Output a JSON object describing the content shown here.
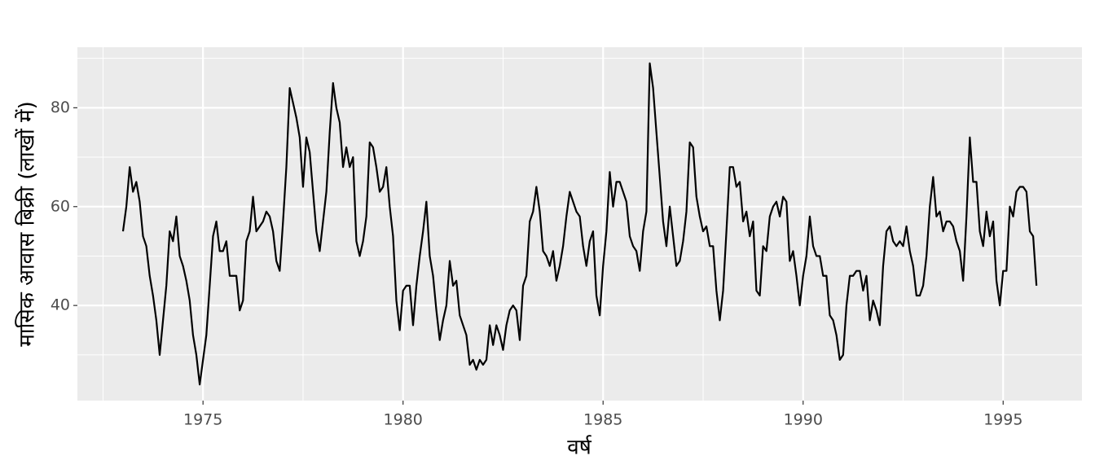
{
  "chart_data": {
    "type": "line",
    "x_label": "वर्ष",
    "y_label": "मासिक आवास बिक्री (लाखों में)",
    "x": [
      1973.0,
      1973.083,
      1973.167,
      1973.25,
      1973.333,
      1973.417,
      1973.5,
      1973.583,
      1973.667,
      1973.75,
      1973.833,
      1973.917,
      1974.0,
      1974.083,
      1974.167,
      1974.25,
      1974.333,
      1974.417,
      1974.5,
      1974.583,
      1974.667,
      1974.75,
      1974.833,
      1974.917,
      1975.0,
      1975.083,
      1975.167,
      1975.25,
      1975.333,
      1975.417,
      1975.5,
      1975.583,
      1975.667,
      1975.75,
      1975.833,
      1975.917,
      1976.0,
      1976.083,
      1976.167,
      1976.25,
      1976.333,
      1976.417,
      1976.5,
      1976.583,
      1976.667,
      1976.75,
      1976.833,
      1976.917,
      1977.0,
      1977.083,
      1977.167,
      1977.25,
      1977.333,
      1977.417,
      1977.5,
      1977.583,
      1977.667,
      1977.75,
      1977.833,
      1977.917,
      1978.0,
      1978.083,
      1978.167,
      1978.25,
      1978.333,
      1978.417,
      1978.5,
      1978.583,
      1978.667,
      1978.75,
      1978.833,
      1978.917,
      1979.0,
      1979.083,
      1979.167,
      1979.25,
      1979.333,
      1979.417,
      1979.5,
      1979.583,
      1979.667,
      1979.75,
      1979.833,
      1979.917,
      1980.0,
      1980.083,
      1980.167,
      1980.25,
      1980.333,
      1980.417,
      1980.5,
      1980.583,
      1980.667,
      1980.75,
      1980.833,
      1980.917,
      1981.0,
      1981.083,
      1981.167,
      1981.25,
      1981.333,
      1981.417,
      1981.5,
      1981.583,
      1981.667,
      1981.75,
      1981.833,
      1981.917,
      1982.0,
      1982.083,
      1982.167,
      1982.25,
      1982.333,
      1982.417,
      1982.5,
      1982.583,
      1982.667,
      1982.75,
      1982.833,
      1982.917,
      1983.0,
      1983.083,
      1983.167,
      1983.25,
      1983.333,
      1983.417,
      1983.5,
      1983.583,
      1983.667,
      1983.75,
      1983.833,
      1983.917,
      1984.0,
      1984.083,
      1984.167,
      1984.25,
      1984.333,
      1984.417,
      1984.5,
      1984.583,
      1984.667,
      1984.75,
      1984.833,
      1984.917,
      1985.0,
      1985.083,
      1985.167,
      1985.25,
      1985.333,
      1985.417,
      1985.5,
      1985.583,
      1985.667,
      1985.75,
      1985.833,
      1985.917,
      1986.0,
      1986.083,
      1986.167,
      1986.25,
      1986.333,
      1986.417,
      1986.5,
      1986.583,
      1986.667,
      1986.75,
      1986.833,
      1986.917,
      1987.0,
      1987.083,
      1987.167,
      1987.25,
      1987.333,
      1987.417,
      1987.5,
      1987.583,
      1987.667,
      1987.75,
      1987.833,
      1987.917,
      1988.0,
      1988.083,
      1988.167,
      1988.25,
      1988.333,
      1988.417,
      1988.5,
      1988.583,
      1988.667,
      1988.75,
      1988.833,
      1988.917,
      1989.0,
      1989.083,
      1989.167,
      1989.25,
      1989.333,
      1989.417,
      1989.5,
      1989.583,
      1989.667,
      1989.75,
      1989.833,
      1989.917,
      1990.0,
      1990.083,
      1990.167,
      1990.25,
      1990.333,
      1990.417,
      1990.5,
      1990.583,
      1990.667,
      1990.75,
      1990.833,
      1990.917,
      1991.0,
      1991.083,
      1991.167,
      1991.25,
      1991.333,
      1991.417,
      1991.5,
      1991.583,
      1991.667,
      1991.75,
      1991.833,
      1991.917,
      1992.0,
      1992.083,
      1992.167,
      1992.25,
      1992.333,
      1992.417,
      1992.5,
      1992.583,
      1992.667,
      1992.75,
      1992.833,
      1992.917,
      1993.0,
      1993.083,
      1993.167,
      1993.25,
      1993.333,
      1993.417,
      1993.5,
      1993.583,
      1993.667,
      1993.75,
      1993.833,
      1993.917,
      1994.0,
      1994.083,
      1994.167,
      1994.25,
      1994.333,
      1994.417,
      1994.5,
      1994.583,
      1994.667,
      1994.75,
      1994.833,
      1994.917,
      1995.0,
      1995.083,
      1995.167,
      1995.25,
      1995.333,
      1995.417,
      1995.5,
      1995.583,
      1995.667,
      1995.75,
      1995.833
    ],
    "series": [
      {
        "color": "#000000",
        "values": [
          55,
          60,
          68,
          63,
          65,
          61,
          54,
          52,
          46,
          42,
          37,
          30,
          37,
          44,
          55,
          53,
          58,
          50,
          48,
          45,
          41,
          34,
          30,
          24,
          29,
          34,
          44,
          54,
          57,
          51,
          51,
          53,
          46,
          46,
          46,
          39,
          41,
          53,
          55,
          62,
          55,
          56,
          57,
          59,
          58,
          55,
          49,
          47,
          57,
          68,
          84,
          81,
          78,
          74,
          64,
          74,
          71,
          63,
          55,
          51,
          57,
          63,
          75,
          85,
          80,
          77,
          68,
          72,
          68,
          70,
          53,
          50,
          53,
          58,
          73,
          72,
          68,
          63,
          64,
          68,
          60,
          54,
          41,
          35,
          43,
          44,
          44,
          36,
          44,
          50,
          55,
          61,
          50,
          46,
          39,
          33,
          37,
          40,
          49,
          44,
          45,
          38,
          36,
          34,
          28,
          29,
          27,
          29,
          28,
          29,
          36,
          32,
          36,
          34,
          31,
          36,
          39,
          40,
          39,
          33,
          44,
          46,
          57,
          59,
          64,
          59,
          51,
          50,
          48,
          51,
          45,
          48,
          52,
          58,
          63,
          61,
          59,
          58,
          52,
          48,
          53,
          55,
          42,
          38,
          48,
          55,
          67,
          60,
          65,
          65,
          63,
          61,
          54,
          52,
          51,
          47,
          55,
          59,
          89,
          84,
          75,
          66,
          57,
          52,
          60,
          54,
          48,
          49,
          53,
          59,
          73,
          72,
          62,
          58,
          55,
          56,
          52,
          52,
          43,
          37,
          43,
          55,
          68,
          68,
          64,
          65,
          57,
          59,
          54,
          57,
          43,
          42,
          52,
          51,
          58,
          60,
          61,
          58,
          62,
          61,
          49,
          51,
          46,
          40,
          46,
          50,
          58,
          52,
          50,
          50,
          46,
          46,
          38,
          37,
          34,
          29,
          30,
          40,
          46,
          46,
          47,
          47,
          43,
          46,
          37,
          41,
          39,
          36,
          48,
          55,
          56,
          53,
          52,
          53,
          52,
          56,
          51,
          48,
          42,
          42,
          44,
          50,
          60,
          66,
          58,
          59,
          55,
          57,
          57,
          56,
          53,
          51,
          45,
          58,
          74,
          65,
          65,
          55,
          52,
          59,
          54,
          57,
          45,
          40,
          47,
          47,
          60,
          58,
          63,
          64,
          64,
          63,
          55,
          54,
          44
        ]
      }
    ],
    "xlim": [
      1971.86,
      1996.97
    ],
    "ylim": [
      20.75,
      92.25
    ],
    "xticks": [
      1975,
      1980,
      1985,
      1990,
      1995
    ],
    "yticks": [
      40,
      60,
      80
    ],
    "grid": true
  }
}
